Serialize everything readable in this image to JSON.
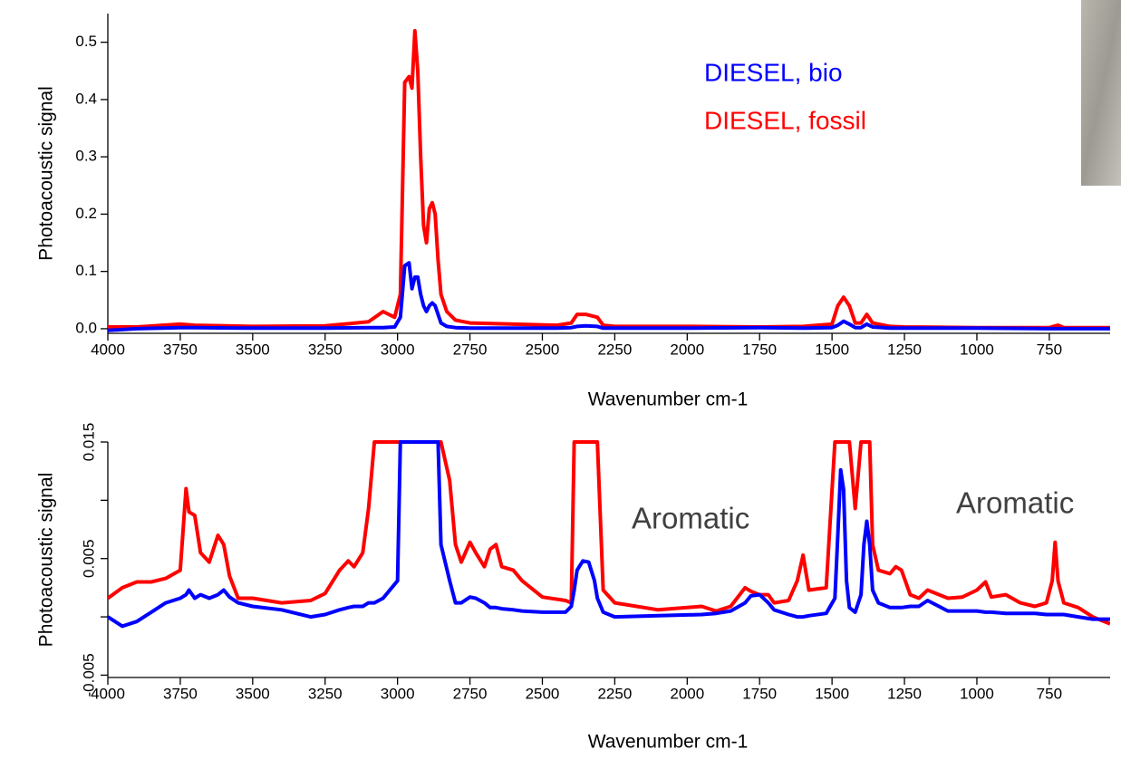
{
  "chart_data": [
    {
      "type": "line",
      "x_label": "Wavenumber cm-1",
      "y_label": "Photoacoustic signal",
      "xlim": [
        4000,
        540
      ],
      "ylim": [
        -0.008,
        0.55
      ],
      "xticks": [
        4000,
        3750,
        3500,
        3250,
        3000,
        2750,
        2500,
        2250,
        2000,
        1750,
        1500,
        1250,
        1000,
        750
      ],
      "yticks": [
        {
          "value": 0,
          "label": "0.0"
        },
        0.1,
        0.2,
        0.3,
        0.4,
        0.5
      ],
      "x": [
        4000,
        3900,
        3750,
        3700,
        3500,
        3250,
        3100,
        3050,
        3010,
        2990,
        2975,
        2960,
        2950,
        2940,
        2930,
        2920,
        2910,
        2900,
        2890,
        2880,
        2870,
        2860,
        2850,
        2830,
        2800,
        2750,
        2600,
        2450,
        2400,
        2380,
        2350,
        2310,
        2290,
        2250,
        2000,
        1750,
        1600,
        1500,
        1480,
        1460,
        1440,
        1420,
        1400,
        1380,
        1360,
        1300,
        1250,
        1000,
        750,
        720,
        700,
        540
      ],
      "series": [
        {
          "name": "DIESEL, fossil",
          "color": "#ff0000",
          "values": [
            0.003,
            0.003,
            0.008,
            0.006,
            0.004,
            0.005,
            0.012,
            0.03,
            0.02,
            0.06,
            0.43,
            0.44,
            0.42,
            0.52,
            0.45,
            0.3,
            0.18,
            0.15,
            0.21,
            0.22,
            0.2,
            0.12,
            0.06,
            0.03,
            0.015,
            0.01,
            0.008,
            0.006,
            0.01,
            0.025,
            0.025,
            0.02,
            0.006,
            0.004,
            0.004,
            0.003,
            0.004,
            0.008,
            0.04,
            0.055,
            0.04,
            0.01,
            0.01,
            0.025,
            0.01,
            0.004,
            0.003,
            0.002,
            0.002,
            0.006,
            0.002,
            0.002
          ]
        },
        {
          "name": "DIESEL, bio",
          "color": "#0000ff",
          "values": [
            -0.003,
            0,
            0.002,
            0.002,
            0.001,
            0.001,
            0.002,
            0.002,
            0.003,
            0.02,
            0.11,
            0.115,
            0.07,
            0.09,
            0.09,
            0.06,
            0.04,
            0.03,
            0.04,
            0.045,
            0.04,
            0.025,
            0.01,
            0.004,
            0.002,
            0.001,
            0.001,
            0.001,
            0.002,
            0.004,
            0.005,
            0.004,
            0.001,
            0.001,
            0.001,
            0.002,
            0.001,
            0.002,
            0.006,
            0.013,
            0.008,
            0.002,
            0.002,
            0.008,
            0.003,
            0.001,
            0.001,
            0.001,
            0,
            0,
            0,
            0
          ]
        }
      ],
      "legend": "upper right"
    },
    {
      "type": "line",
      "x_label": "Wavenumber cm-1",
      "y_label": "Photoacoustic signal",
      "xlim": [
        4000,
        540
      ],
      "ylim": [
        -0.0052,
        0.015
      ],
      "xticks": [
        4000,
        3750,
        3500,
        3250,
        3000,
        2750,
        2500,
        2250,
        2000,
        1750,
        1500,
        1250,
        1000,
        750
      ],
      "yticks": [
        -0.005,
        {
          "value": 0,
          "label": null
        },
        0.005,
        {
          "value": 0.01,
          "label": null
        },
        0.015
      ],
      "annotations": [
        "Aromatic",
        "Aromatic"
      ],
      "x": [
        4000,
        3950,
        3900,
        3850,
        3800,
        3750,
        3730,
        3720,
        3700,
        3680,
        3650,
        3620,
        3600,
        3580,
        3550,
        3500,
        3400,
        3300,
        3250,
        3200,
        3170,
        3150,
        3120,
        3100,
        3080,
        3050,
        3000,
        2990,
        2970,
        2900,
        2860,
        2850,
        2820,
        2800,
        2780,
        2750,
        2730,
        2700,
        2680,
        2660,
        2640,
        2600,
        2570,
        2500,
        2420,
        2400,
        2390,
        2380,
        2360,
        2340,
        2320,
        2310,
        2290,
        2250,
        2100,
        1950,
        1900,
        1850,
        1800,
        1780,
        1750,
        1720,
        1700,
        1650,
        1620,
        1600,
        1580,
        1520,
        1490,
        1480,
        1470,
        1460,
        1450,
        1440,
        1420,
        1400,
        1390,
        1380,
        1370,
        1360,
        1340,
        1300,
        1280,
        1260,
        1230,
        1200,
        1170,
        1100,
        1050,
        1000,
        970,
        950,
        900,
        850,
        800,
        760,
        740,
        730,
        720,
        700,
        650,
        600,
        540
      ],
      "series": [
        {
          "color": "#ff0000",
          "values": [
            0.0016,
            0.0025,
            0.003,
            0.003,
            0.0033,
            0.004,
            0.011,
            0.009,
            0.0087,
            0.0055,
            0.0047,
            0.007,
            0.0062,
            0.0035,
            0.0016,
            0.0016,
            0.0012,
            0.0014,
            0.002,
            0.004,
            0.0048,
            0.0043,
            0.0055,
            0.0093,
            0.015,
            0.015,
            0.015,
            0.015,
            0.015,
            0.015,
            0.015,
            0.015,
            0.0117,
            0.0062,
            0.0047,
            0.0064,
            0.0055,
            0.0043,
            0.0058,
            0.0062,
            0.0043,
            0.004,
            0.0031,
            0.0017,
            0.0014,
            0.0012,
            0.015,
            0.015,
            0.015,
            0.015,
            0.015,
            0.015,
            0.0023,
            0.0012,
            0.0006,
            0.0009,
            0.0005,
            0.0009,
            0.0025,
            0.0022,
            0.0019,
            0.0019,
            0.0012,
            0.0014,
            0.0031,
            0.0053,
            0.0023,
            0.0025,
            0.015,
            0.015,
            0.015,
            0.015,
            0.015,
            0.015,
            0.0093,
            0.015,
            0.015,
            0.015,
            0.015,
            0.0062,
            0.004,
            0.0037,
            0.0043,
            0.004,
            0.0019,
            0.0016,
            0.0023,
            0.0016,
            0.0017,
            0.0023,
            0.003,
            0.0017,
            0.0019,
            0.0012,
            0.0009,
            0.0012,
            0.0031,
            0.0064,
            0.0031,
            0.0012,
            0.0008,
            0,
            -0.0006
          ]
        },
        {
          "color": "#0000ff",
          "values": [
            0,
            -0.0008,
            -0.0004,
            0.0004,
            0.0012,
            0.0016,
            0.0019,
            0.0023,
            0.0016,
            0.0019,
            0.0016,
            0.0019,
            0.0023,
            0.0017,
            0.0012,
            0.0009,
            0.0006,
            0,
            0.0002,
            0.0006,
            0.0008,
            0.0009,
            0.0009,
            0.0012,
            0.0012,
            0.0016,
            0.0031,
            0.015,
            0.015,
            0.015,
            0.015,
            0.0062,
            0.0031,
            0.0012,
            0.0012,
            0.0017,
            0.0016,
            0.0012,
            0.0008,
            0.0008,
            0.0007,
            0.0006,
            0.0005,
            0.0004,
            0.0004,
            0.0009,
            0.0023,
            0.004,
            0.0048,
            0.0047,
            0.0031,
            0.0016,
            0.0004,
            0,
            0.0001,
            0.0002,
            0.0003,
            0.0005,
            0.0012,
            0.0018,
            0.0019,
            0.0012,
            0.0006,
            0.0002,
            0,
            0,
            0.0001,
            0.0003,
            0.0016,
            0.007,
            0.0126,
            0.0109,
            0.0031,
            0.0008,
            0.0004,
            0.0019,
            0.0062,
            0.0082,
            0.0062,
            0.0023,
            0.0012,
            0.0008,
            0.0008,
            0.0008,
            0.0009,
            0.0009,
            0.0014,
            0.0005,
            0.0005,
            0.0005,
            0.0004,
            0.0004,
            0.0003,
            0.0003,
            0.0003,
            0.0002,
            0.0002,
            0.0002,
            0.0002,
            0.0002,
            0,
            -0.0002,
            -0.0002
          ]
        }
      ]
    }
  ]
}
